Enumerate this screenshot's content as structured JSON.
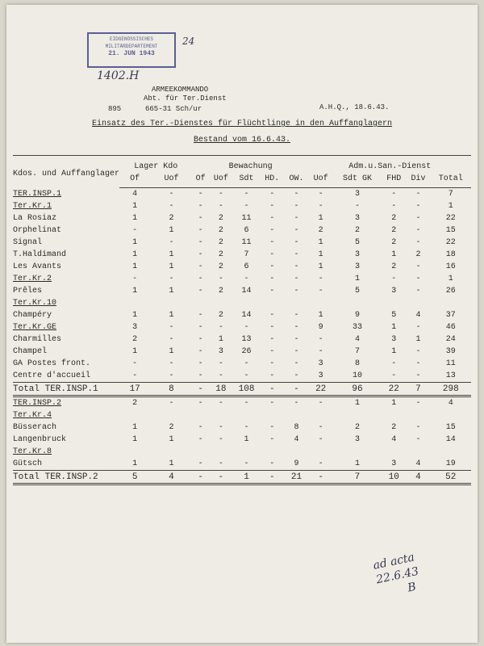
{
  "stamp": {
    "line1": "EIDGENÖSSISCHES",
    "line2": "MILITÄRDEPARTEMENT",
    "date": "21. JUN 1943",
    "number": "1402.H",
    "mark": "24"
  },
  "letterhead": {
    "office": "ARMEEKOMMANDO",
    "department": "Abt. für Ter.Dienst",
    "ref1": "895",
    "ref2": "665-31 Sch/ur",
    "place_date": "A.H.Q., 18.6.43."
  },
  "title": "Einsatz des Ter.-Dienstes für Flüchtlinge in den Auffanglagern",
  "subtitle": "Bestand vom 16.6.43.",
  "table": {
    "header": {
      "label": "Kdos. und Auffanglager",
      "groups": [
        {
          "label": "Lager Kdo",
          "columns": [
            "Of",
            "Uof"
          ]
        },
        {
          "label": "Bewachung",
          "columns": [
            "Of",
            "Uof",
            "Sdt",
            "HD.",
            "OW."
          ]
        },
        {
          "label": "Adm.u.San.-Dienst",
          "columns": [
            "Uof",
            "Sdt GK",
            "FHD",
            "Div",
            "Total"
          ]
        }
      ]
    },
    "sections": [
      {
        "heading": {
          "label": "TER.INSP.1",
          "cells": [
            "4",
            "-",
            "-",
            "-",
            "-",
            "-",
            "-",
            "-",
            "3",
            "-",
            "-",
            "7"
          ]
        },
        "groups": [
          {
            "heading": {
              "label": "Ter.Kr.1",
              "cells": [
                "1",
                "-",
                "-",
                "-",
                "-",
                "-",
                "-",
                "-",
                "-",
                "-",
                "-",
                "1"
              ]
            },
            "rows": [
              {
                "label": "La Rosiaz",
                "cells": [
                  "1",
                  "2",
                  "-",
                  "2",
                  "11",
                  "-",
                  "-",
                  "1",
                  "3",
                  "2",
                  "-",
                  "22"
                ]
              },
              {
                "label": "Orphelinat",
                "cells": [
                  "-",
                  "1",
                  "-",
                  "2",
                  "6",
                  "-",
                  "-",
                  "2",
                  "2",
                  "2",
                  "-",
                  "15"
                ]
              },
              {
                "label": "Signal",
                "cells": [
                  "1",
                  "-",
                  "-",
                  "2",
                  "11",
                  "-",
                  "-",
                  "1",
                  "5",
                  "2",
                  "-",
                  "22"
                ]
              },
              {
                "label": "T.Haldimand",
                "cells": [
                  "1",
                  "1",
                  "-",
                  "2",
                  "7",
                  "-",
                  "-",
                  "1",
                  "3",
                  "1",
                  "2",
                  "18"
                ]
              },
              {
                "label": "Les Avants",
                "cells": [
                  "1",
                  "1",
                  "-",
                  "2",
                  "6",
                  "-",
                  "-",
                  "1",
                  "3",
                  "2",
                  "-",
                  "16"
                ]
              }
            ]
          },
          {
            "heading": {
              "label": "Ter.Kr.2",
              "cells": [
                "-",
                "-",
                "-",
                "-",
                "-",
                "-",
                "-",
                "-",
                "1",
                "-",
                "-",
                "1"
              ]
            },
            "rows": [
              {
                "label": "Prêles",
                "cells": [
                  "1",
                  "1",
                  "-",
                  "2",
                  "14",
                  "-",
                  "-",
                  "-",
                  "5",
                  "3",
                  "-",
                  "26"
                ]
              }
            ]
          },
          {
            "heading": {
              "label": "Ter.Kr.10"
            },
            "rows": [
              {
                "label": "Champéry",
                "cells": [
                  "1",
                  "1",
                  "-",
                  "2",
                  "14",
                  "-",
                  "-",
                  "1",
                  "9",
                  "5",
                  "4",
                  "37"
                ]
              }
            ]
          },
          {
            "heading": {
              "label": "Ter.Kr.GE",
              "cells": [
                "3",
                "-",
                "-",
                "-",
                "-",
                "-",
                "-",
                "9",
                "33",
                "1",
                "-",
                "46"
              ]
            },
            "rows": [
              {
                "label": "Charmilles",
                "cells": [
                  "2",
                  "-",
                  "-",
                  "1",
                  "13",
                  "-",
                  "-",
                  "-",
                  "4",
                  "3",
                  "1",
                  "24"
                ]
              },
              {
                "label": "Champel",
                "cells": [
                  "1",
                  "1",
                  "-",
                  "3",
                  "26",
                  "-",
                  "-",
                  "-",
                  "7",
                  "1",
                  "-",
                  "39"
                ]
              },
              {
                "label": "GA Postes front.",
                "cells": [
                  "-",
                  "-",
                  "-",
                  "-",
                  "-",
                  "-",
                  "-",
                  "3",
                  "8",
                  "-",
                  "-",
                  "11"
                ]
              },
              {
                "label": "Centre d'accueil",
                "cells": [
                  "-",
                  "-",
                  "-",
                  "-",
                  "-",
                  "-",
                  "-",
                  "3",
                  "10",
                  "-",
                  "-",
                  "13"
                ]
              }
            ]
          }
        ],
        "total": {
          "label": "Total TER.INSP.1",
          "cells": [
            "17",
            "8",
            "-",
            "18",
            "108",
            "-",
            "-",
            "22",
            "96",
            "22",
            "7",
            "298"
          ]
        }
      },
      {
        "heading": {
          "label": "TER.INSP.2",
          "cells": [
            "2",
            "-",
            "-",
            "-",
            "-",
            "-",
            "-",
            "-",
            "1",
            "1",
            "-",
            "4"
          ]
        },
        "groups": [
          {
            "heading": {
              "label": "Ter.Kr.4"
            },
            "rows": [
              {
                "label": "Büsserach",
                "cells": [
                  "1",
                  "2",
                  "-",
                  "-",
                  "-",
                  "-",
                  "8",
                  "-",
                  "2",
                  "2",
                  "-",
                  "15"
                ]
              },
              {
                "label": "Langenbruck",
                "cells": [
                  "1",
                  "1",
                  "-",
                  "-",
                  "1",
                  "-",
                  "4",
                  "-",
                  "3",
                  "4",
                  "-",
                  "14"
                ]
              }
            ]
          },
          {
            "heading": {
              "label": "Ter.Kr.8"
            },
            "rows": [
              {
                "label": "Gütsch",
                "cells": [
                  "1",
                  "1",
                  "-",
                  "-",
                  "-",
                  "-",
                  "9",
                  "-",
                  "1",
                  "3",
                  "4",
                  "19"
                ]
              }
            ]
          }
        ],
        "total": {
          "label": "Total TER.INSP.2",
          "cells": [
            "5",
            "4",
            "-",
            "-",
            "1",
            "-",
            "21",
            "-",
            "7",
            "10",
            "4",
            "52"
          ]
        }
      }
    ]
  },
  "annotation": {
    "line1": "ad acta",
    "line2": "22.6.43",
    "line3": "B"
  }
}
